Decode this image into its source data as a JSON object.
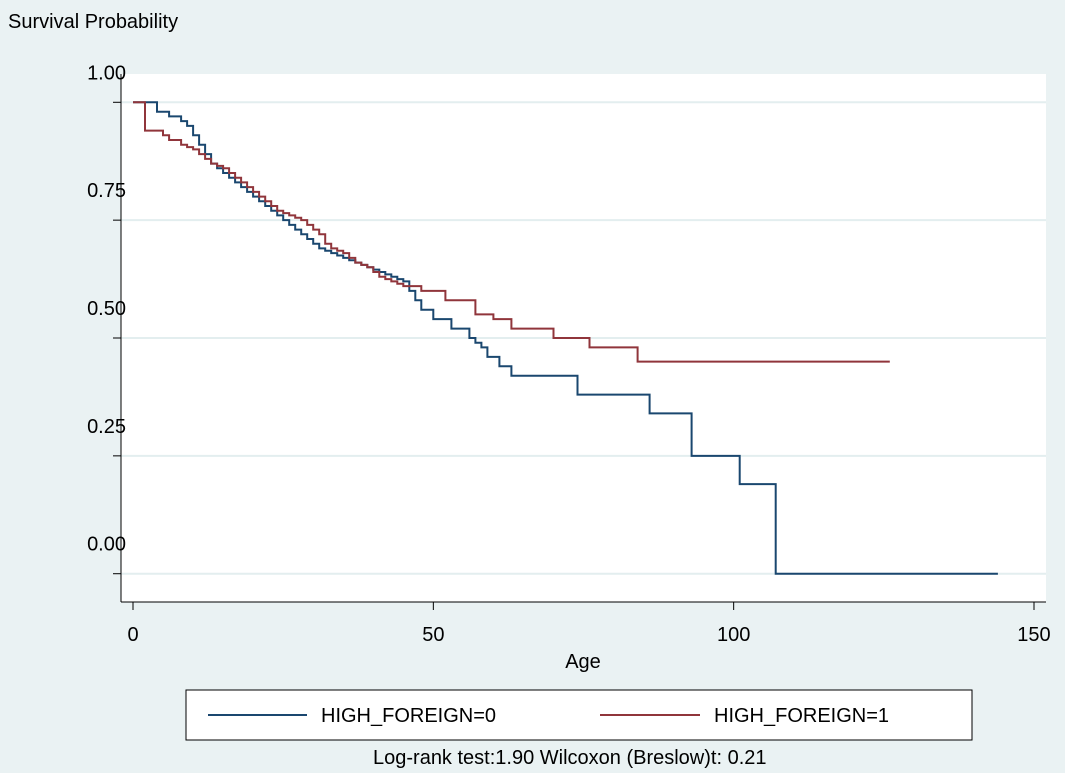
{
  "chart_data": {
    "type": "line",
    "step": true,
    "ylabel": "Survival Probability",
    "xlabel": "Age",
    "xlim": [
      -2,
      152
    ],
    "ylim": [
      -0.06,
      1.06
    ],
    "xticks": [
      0,
      50,
      100,
      150
    ],
    "xtick_labels": [
      "0",
      "50",
      "100",
      "150"
    ],
    "yticks": [
      0.0,
      0.25,
      0.5,
      0.75,
      1.0
    ],
    "ytick_labels": [
      "0.00",
      "0.25",
      "0.50",
      "0.75",
      "1.00"
    ],
    "grid": true,
    "legend_position": "bottom",
    "colors": {
      "background": "#eaf2f3",
      "plot": "#ffffff",
      "grid": "#e3eeef",
      "series0": "#1a476f",
      "series1": "#90353b"
    },
    "series": [
      {
        "name": "HIGH_FOREIGN=0",
        "color": "#1a476f",
        "x": [
          0,
          4,
          6,
          8,
          9,
          10,
          11,
          12,
          13,
          14,
          15,
          16,
          17,
          18,
          19,
          20,
          21,
          22,
          23,
          24,
          25,
          26,
          27,
          28,
          29,
          30,
          31,
          32,
          33,
          34,
          35,
          36,
          37,
          38,
          39,
          40,
          41,
          42,
          43,
          44,
          45,
          46,
          47,
          48,
          50,
          53,
          56,
          57,
          58,
          59,
          61,
          63,
          67,
          74,
          86,
          87,
          92,
          93,
          101,
          106,
          107,
          144
        ],
        "y": [
          1.0,
          0.98,
          0.97,
          0.96,
          0.95,
          0.93,
          0.91,
          0.89,
          0.87,
          0.86,
          0.85,
          0.84,
          0.83,
          0.82,
          0.81,
          0.8,
          0.79,
          0.78,
          0.77,
          0.76,
          0.75,
          0.74,
          0.73,
          0.72,
          0.71,
          0.7,
          0.69,
          0.685,
          0.68,
          0.675,
          0.67,
          0.665,
          0.66,
          0.655,
          0.65,
          0.645,
          0.64,
          0.635,
          0.63,
          0.625,
          0.62,
          0.6,
          0.58,
          0.56,
          0.54,
          0.52,
          0.5,
          0.49,
          0.48,
          0.46,
          0.44,
          0.42,
          0.42,
          0.38,
          0.34,
          0.34,
          0.34,
          0.25,
          0.19,
          0.19,
          0.0,
          0.0
        ]
      },
      {
        "name": "HIGH_FOREIGN=1",
        "color": "#90353b",
        "x": [
          0,
          2,
          5,
          6,
          8,
          9,
          10,
          11,
          12,
          13,
          14,
          15,
          16,
          17,
          18,
          19,
          20,
          21,
          22,
          23,
          24,
          25,
          26,
          27,
          28,
          29,
          30,
          31,
          32,
          33,
          34,
          35,
          36,
          37,
          38,
          39,
          40,
          41,
          42,
          43,
          44,
          45,
          46,
          47,
          48,
          52,
          57,
          60,
          63,
          70,
          76,
          84,
          126
        ],
        "y": [
          1.0,
          0.94,
          0.93,
          0.92,
          0.91,
          0.905,
          0.9,
          0.89,
          0.88,
          0.87,
          0.865,
          0.86,
          0.85,
          0.84,
          0.83,
          0.82,
          0.81,
          0.8,
          0.79,
          0.78,
          0.77,
          0.765,
          0.76,
          0.755,
          0.75,
          0.74,
          0.73,
          0.72,
          0.7,
          0.69,
          0.685,
          0.68,
          0.67,
          0.66,
          0.655,
          0.65,
          0.64,
          0.63,
          0.625,
          0.62,
          0.615,
          0.61,
          0.61,
          0.61,
          0.6,
          0.58,
          0.55,
          0.54,
          0.52,
          0.5,
          0.48,
          0.45,
          0.45
        ]
      }
    ],
    "annotation": "Log-rank test:1.90  Wilcoxon (Breslow)t: 0.21"
  }
}
